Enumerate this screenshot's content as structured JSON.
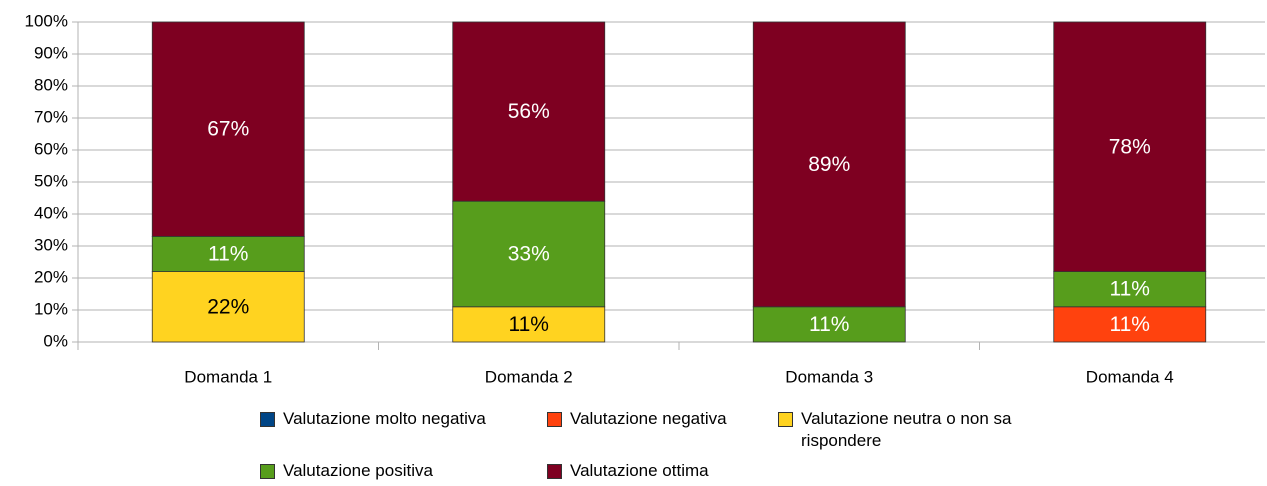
{
  "chart_data": {
    "type": "stacked_bar",
    "categories": [
      "Domanda 1",
      "Domanda 2",
      "Domanda 3",
      "Domanda 4"
    ],
    "series": [
      {
        "name": "Valutazione molto negativa",
        "color": "#004586",
        "values": [
          0,
          0,
          0,
          0
        ],
        "value_labels": [
          null,
          null,
          null,
          null
        ]
      },
      {
        "name": "Valutazione negativa",
        "color": "#ff420e",
        "values": [
          0,
          0,
          0,
          11
        ],
        "value_labels": [
          null,
          null,
          null,
          "11%"
        ]
      },
      {
        "name": "Valutazione neutra o non sa rispondere",
        "color": "#ffd320",
        "values": [
          22,
          11,
          0,
          0
        ],
        "value_labels": [
          "22%",
          "11%",
          null,
          null
        ]
      },
      {
        "name": "Valutazione positiva",
        "color": "#579d1c",
        "values": [
          11,
          33,
          11,
          11
        ],
        "value_labels": [
          "11%",
          "33%",
          "11%",
          "11%"
        ]
      },
      {
        "name": "Valutazione ottima",
        "color": "#7e0021",
        "values": [
          67,
          56,
          89,
          78
        ],
        "value_labels": [
          "67%",
          "56%",
          "89%",
          "78%"
        ]
      }
    ],
    "ylim": [
      0,
      100
    ],
    "yticks": [
      {
        "value": 0,
        "label": "0%"
      },
      {
        "value": 10,
        "label": "10%"
      },
      {
        "value": 20,
        "label": "20%"
      },
      {
        "value": 30,
        "label": "30%"
      },
      {
        "value": 40,
        "label": "40%"
      },
      {
        "value": 50,
        "label": "50%"
      },
      {
        "value": 60,
        "label": "60%"
      },
      {
        "value": 70,
        "label": "70%"
      },
      {
        "value": 80,
        "label": "80%"
      },
      {
        "value": 90,
        "label": "90%"
      },
      {
        "value": 100,
        "label": "100%"
      }
    ],
    "grid": true
  }
}
